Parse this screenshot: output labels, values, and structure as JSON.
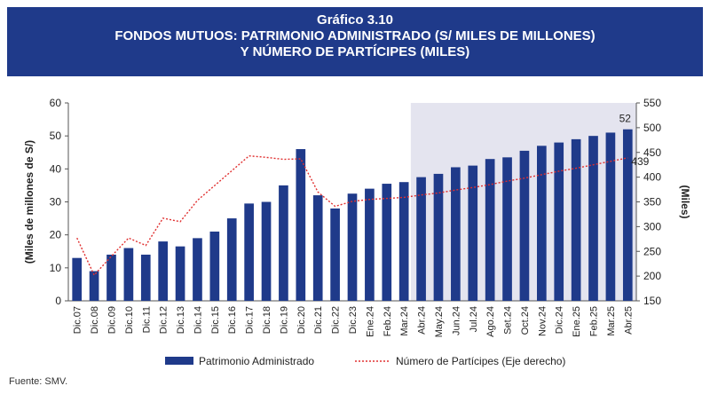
{
  "header": {
    "line1": "Gráfico 3.10",
    "line2": "FONDOS MUTUOS: PATRIMONIO ADMINISTRADO (S/ MILES DE MILLONES)",
    "line3": "Y NÚMERO DE PARTÍCIPES (MILES)"
  },
  "source": "Fuente: SMV.",
  "colors": {
    "banner": "#1f3a8a",
    "bar": "#1f3a8a",
    "line": "#e03030",
    "shade": "#e4e4ef"
  },
  "chart_data": {
    "type": "bar",
    "categories": [
      "Dic.07",
      "Dic.08",
      "Dic.09",
      "Dic.10",
      "Dic.11",
      "Dic.12",
      "Dic.13",
      "Dic.14",
      "Dic.15",
      "Dic.16",
      "Dic.17",
      "Dic.18",
      "Dic.19",
      "Dic.20",
      "Dic.21",
      "Dic.22",
      "Dic.23",
      "Ene.24",
      "Feb.24",
      "Mar.24",
      "Abr.24",
      "May.24",
      "Jun.24",
      "Jul.24",
      "Ago.24",
      "Set.24",
      "Oct.24",
      "Nov.24",
      "Dic.24",
      "Ene.25",
      "Feb.25",
      "Mar.25",
      "Abr.25"
    ],
    "series": [
      {
        "name": "Patrimonio Administrado",
        "axis": "left",
        "values": [
          13,
          9,
          14,
          16,
          14,
          18,
          16.5,
          19,
          21,
          25,
          29.5,
          30,
          35,
          46,
          32,
          28,
          32.5,
          34,
          35.5,
          36,
          37.5,
          38.5,
          40.5,
          41,
          43,
          43.5,
          45.5,
          47,
          48,
          49,
          50,
          51,
          52
        ]
      },
      {
        "name": "Número de Partícipes (Eje derecho)",
        "axis": "right",
        "values": [
          277,
          202,
          240,
          277,
          262,
          317,
          310,
          353,
          383,
          413,
          443,
          440,
          436,
          437,
          370,
          341,
          351,
          355,
          357,
          359,
          364,
          368,
          374,
          379,
          385,
          392,
          398,
          405,
          412,
          418,
          425,
          432,
          439
        ]
      }
    ],
    "ylabel": "(Miles de millones de S/)",
    "ylabel_right": "(Miles)",
    "ylim": [
      0,
      60
    ],
    "ylim_right": [
      150,
      550
    ],
    "yticks": [
      0,
      10,
      20,
      30,
      40,
      50,
      60
    ],
    "yticks_right": [
      150,
      200,
      250,
      300,
      350,
      400,
      450,
      500,
      550
    ],
    "shaded_from": "Abr.24",
    "last_labels": {
      "bar": "52",
      "line": "439"
    },
    "legend": {
      "position": "bottom"
    }
  }
}
